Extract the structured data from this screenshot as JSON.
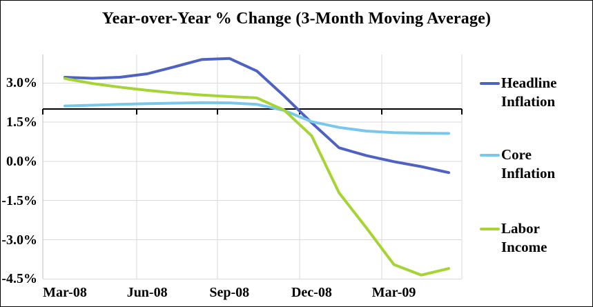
{
  "title": "Year-over-Year % Change (3-Month Moving Average)",
  "legend": {
    "entries": [
      {
        "label": "Headline Inflation",
        "color": "#4E62C3"
      },
      {
        "label": "Core Inflation",
        "color": "#79C7EB"
      },
      {
        "label": "Labor Income",
        "color": "#A5D434"
      }
    ]
  },
  "colors": {
    "background": "#FFFFFF",
    "gridline": "#D9D9D9",
    "y_axis_line": "#BFBFBF",
    "category_axis": "#000000",
    "text": "#000000"
  },
  "chart_data": {
    "type": "line",
    "title": "Year-over-Year % Change (3-Month Moving Average)",
    "x": [
      "Mar-08",
      "Apr-08",
      "May-08",
      "Jun-08",
      "Jul-08",
      "Aug-08",
      "Sep-08",
      "Oct-08",
      "Nov-08",
      "Dec-08",
      "Jan-09",
      "Feb-09",
      "Mar-09",
      "Apr-09",
      "May-09"
    ],
    "x_tick_labels": [
      "Mar-08",
      "Jun-08",
      "Sep-08",
      "Dec-08",
      "Mar-09"
    ],
    "x_tick_label_indices": [
      0,
      3,
      6,
      9,
      12
    ],
    "y_tick_labels": [
      "3.0%",
      "1.5%",
      "0.0%",
      "-1.5%",
      "-3.0%",
      "-4.5%"
    ],
    "y_gridline_values": [
      3.0,
      1.5,
      0.0,
      -1.5,
      -3.0,
      -4.5
    ],
    "x_axis_cross_value": 2.0,
    "ylim": [
      -4.49,
      4.09
    ],
    "grid": true,
    "legend_position": "right",
    "series": [
      {
        "name": "Headline Inflation",
        "color": "#4E62C3",
        "values": [
          3.22,
          3.18,
          3.22,
          3.35,
          3.62,
          3.9,
          3.94,
          3.46,
          2.5,
          1.48,
          0.52,
          0.22,
          -0.01,
          -0.2,
          -0.43
        ]
      },
      {
        "name": "Core Inflation",
        "color": "#79C7EB",
        "values": [
          2.12,
          2.15,
          2.18,
          2.21,
          2.23,
          2.25,
          2.24,
          2.18,
          1.95,
          1.52,
          1.3,
          1.16,
          1.1,
          1.08,
          1.07
        ]
      },
      {
        "name": "Labor Income",
        "color": "#A5D434",
        "values": [
          3.17,
          2.98,
          2.84,
          2.72,
          2.62,
          2.54,
          2.48,
          2.43,
          1.96,
          0.98,
          -1.2,
          -2.55,
          -3.95,
          -4.35,
          -4.1
        ]
      }
    ]
  }
}
